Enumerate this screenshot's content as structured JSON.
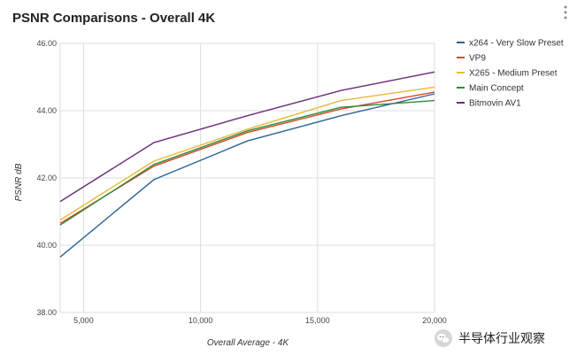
{
  "chart_data": {
    "type": "line",
    "title": "PSNR Comparisons - Overall 4K",
    "xlabel": "Overall Average - 4K",
    "ylabel": "PSNR dB",
    "xlim": [
      4000,
      20000
    ],
    "ylim": [
      38,
      46
    ],
    "x_ticks": [
      5000,
      10000,
      15000,
      20000
    ],
    "x_tick_labels": [
      "5,000",
      "10,000",
      "15,000",
      "20,000"
    ],
    "y_ticks": [
      38,
      40,
      42,
      44,
      46
    ],
    "y_tick_labels": [
      "38.00",
      "40.00",
      "42.00",
      "44.00",
      "46.00"
    ],
    "grid": true,
    "legend_position": "right",
    "series": [
      {
        "name": "x264 - Very Slow Preset",
        "color": "#2a6496",
        "points": [
          [
            4000,
            39.65
          ],
          [
            8000,
            41.95
          ],
          [
            12000,
            43.1
          ],
          [
            16000,
            43.85
          ],
          [
            20000,
            44.5
          ]
        ]
      },
      {
        "name": "VP9",
        "color": "#d9472b",
        "points": [
          [
            4000,
            40.65
          ],
          [
            8000,
            42.35
          ],
          [
            12000,
            43.35
          ],
          [
            16000,
            44.05
          ],
          [
            20000,
            44.55
          ]
        ]
      },
      {
        "name": "X265 - Medium Preset",
        "color": "#e8b93a",
        "points": [
          [
            4000,
            40.75
          ],
          [
            8000,
            42.5
          ],
          [
            12000,
            43.45
          ],
          [
            16000,
            44.3
          ],
          [
            20000,
            44.7
          ]
        ]
      },
      {
        "name": "Main Concept",
        "color": "#2e8b3a",
        "points": [
          [
            4000,
            40.6
          ],
          [
            8000,
            42.4
          ],
          [
            12000,
            43.4
          ],
          [
            16000,
            44.1
          ],
          [
            20000,
            44.3
          ]
        ]
      },
      {
        "name": "Bitmovin AV1",
        "color": "#6a2d7a",
        "points": [
          [
            4000,
            41.3
          ],
          [
            8000,
            43.05
          ],
          [
            12000,
            43.85
          ],
          [
            16000,
            44.6
          ],
          [
            20000,
            45.15
          ]
        ]
      }
    ]
  },
  "watermark": {
    "text": "半导体行业观察",
    "icon": "wechat-icon"
  },
  "menu": {
    "icon": "more-vert-icon"
  }
}
